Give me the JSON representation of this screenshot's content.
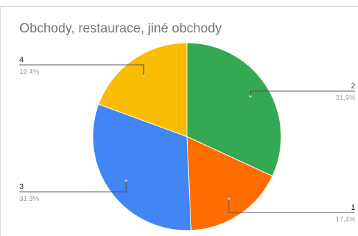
{
  "chart_data": {
    "type": "pie",
    "title": "Obchody, restaurace, jiné obchody",
    "slices": [
      {
        "label": "2",
        "value": 31.9,
        "display": "31,9%",
        "color": "#34a853"
      },
      {
        "label": "1",
        "value": 17.4,
        "display": "17,4%",
        "color": "#ff6d01"
      },
      {
        "label": "3",
        "value": 31.3,
        "display": "31,3%",
        "color": "#4285f4"
      },
      {
        "label": "4",
        "value": 19.4,
        "display": "19,4%",
        "color": "#fbbc04"
      }
    ],
    "legend": "none",
    "labels": "outside-with-leader-lines"
  }
}
